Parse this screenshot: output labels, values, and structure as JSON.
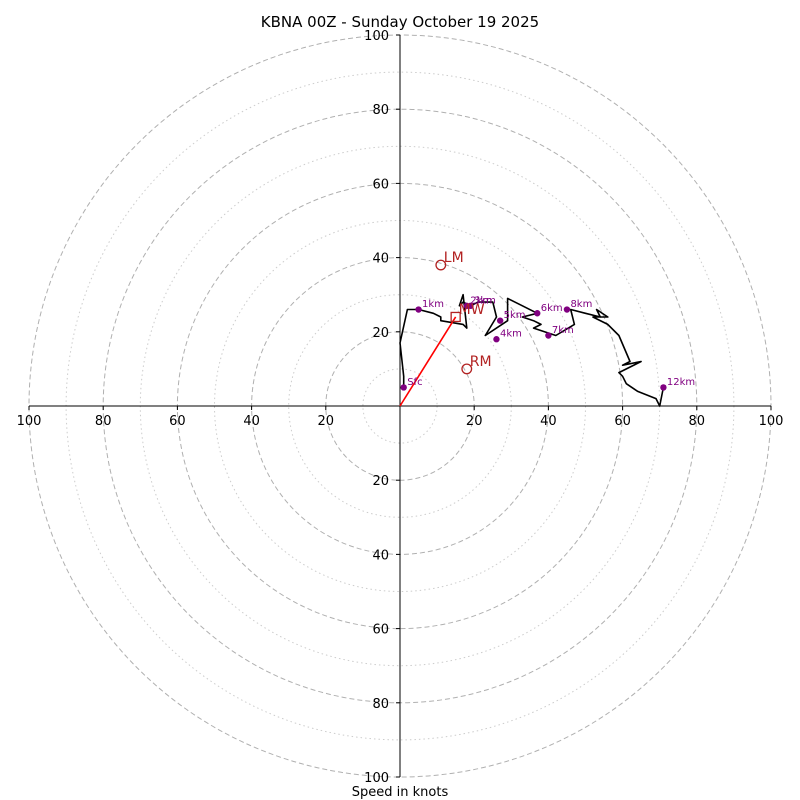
{
  "chart_data": {
    "type": "hodograph",
    "title": "KBNA 00Z - Sunday October 19 2025",
    "xlabel": "Speed in knots",
    "range": [
      -100,
      100
    ],
    "ring_ticks": [
      "100",
      "80",
      "60",
      "40",
      "20"
    ],
    "ring_values": [
      100,
      80,
      60,
      40,
      20
    ],
    "minor_rings": [
      10,
      30,
      50,
      70,
      90
    ],
    "trace": [
      [
        1,
        5
      ],
      [
        1,
        8
      ],
      [
        0,
        17
      ],
      [
        2,
        26
      ],
      [
        5,
        26
      ],
      [
        9,
        25
      ],
      [
        11,
        24
      ],
      [
        11,
        23
      ],
      [
        17,
        22
      ],
      [
        18,
        21
      ],
      [
        17,
        30
      ],
      [
        16,
        27
      ],
      [
        17,
        28
      ],
      [
        19,
        27
      ],
      [
        21,
        28
      ],
      [
        25,
        28
      ],
      [
        26,
        24
      ],
      [
        23,
        19
      ],
      [
        26,
        21
      ],
      [
        29,
        23
      ],
      [
        29,
        29
      ],
      [
        33,
        27
      ],
      [
        37,
        25
      ],
      [
        33,
        24
      ],
      [
        36,
        23
      ],
      [
        38,
        22
      ],
      [
        36,
        21
      ],
      [
        42,
        19
      ],
      [
        47,
        22
      ],
      [
        46,
        26
      ],
      [
        50,
        25
      ],
      [
        54,
        24
      ],
      [
        53,
        26
      ],
      [
        56,
        24
      ],
      [
        52,
        24
      ],
      [
        56,
        22
      ],
      [
        59,
        19
      ],
      [
        62,
        12
      ],
      [
        60,
        11
      ],
      [
        65,
        12
      ],
      [
        59,
        9
      ],
      [
        60,
        8
      ],
      [
        61,
        6
      ],
      [
        64,
        4
      ],
      [
        69,
        2
      ],
      [
        70,
        0
      ],
      [
        71,
        5
      ]
    ],
    "height_labels": [
      {
        "label": "Sfc",
        "u": 1,
        "v": 5
      },
      {
        "label": "1km",
        "u": 5,
        "v": 26
      },
      {
        "label": "2km",
        "u": 18,
        "v": 27
      },
      {
        "label": "3km",
        "u": 19,
        "v": 27
      },
      {
        "label": "4km",
        "u": 26,
        "v": 18
      },
      {
        "label": "5km",
        "u": 27,
        "v": 23
      },
      {
        "label": "6km",
        "u": 37,
        "v": 25
      },
      {
        "label": "7km",
        "u": 40,
        "v": 19
      },
      {
        "label": "8km",
        "u": 45,
        "v": 26
      },
      {
        "label": "12km",
        "u": 71,
        "v": 5
      }
    ],
    "storm_motions": [
      {
        "label": "LM",
        "u": 11,
        "v": 38,
        "marker": "circle"
      },
      {
        "label": "RM",
        "u": 18,
        "v": 10,
        "marker": "circle"
      },
      {
        "label": "MW",
        "u": 15,
        "v": 24,
        "marker": "square"
      }
    ],
    "shear_vector": {
      "from": [
        0,
        0
      ],
      "to": [
        15,
        24
      ]
    },
    "colors": {
      "trace": "#000000",
      "height_points": "#800080",
      "storm_motion": "#b22222",
      "shear_vector": "#ff0000",
      "major_grid": "#b0b0b0",
      "minor_grid": "#cccccc"
    }
  }
}
